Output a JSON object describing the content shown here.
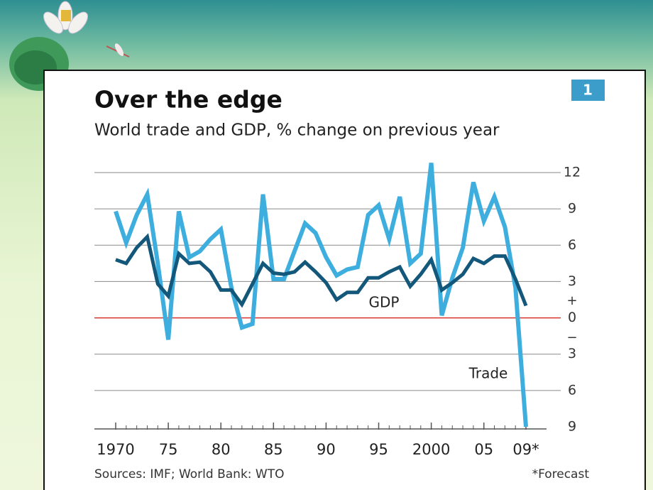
{
  "chart_data": {
    "type": "line",
    "badge": "1",
    "title": "Over the edge",
    "subtitle": "World trade and GDP, % change on previous year",
    "source": "Sources: IMF; World Bank: WTO",
    "footnote": "*Forecast",
    "axis_signs": [
      "+",
      "−"
    ],
    "x": [
      1970,
      1971,
      1972,
      1973,
      1974,
      1975,
      1976,
      1977,
      1978,
      1979,
      1980,
      1981,
      1982,
      1983,
      1984,
      1985,
      1986,
      1987,
      1988,
      1989,
      1990,
      1991,
      1992,
      1993,
      1994,
      1995,
      1996,
      1997,
      1998,
      1999,
      2000,
      2001,
      2002,
      2003,
      2004,
      2005,
      2006,
      2007,
      2008,
      2009
    ],
    "series": [
      {
        "name": "Trade",
        "color": "#3eaede",
        "values": [
          8.8,
          6.2,
          8.5,
          10.2,
          4.5,
          -1.8,
          8.8,
          5,
          5.5,
          6.5,
          7.3,
          2.5,
          -0.8,
          -0.5,
          10.2,
          3.2,
          3.2,
          5.5,
          7.8,
          7,
          5,
          3.5,
          4,
          4.2,
          8.5,
          9.3,
          6.5,
          10,
          4.5,
          5.3,
          12.8,
          0.2,
          3.3,
          5.8,
          11.2,
          8,
          10,
          7.5,
          2.5,
          -9
        ]
      },
      {
        "name": "GDP",
        "color": "#13587a",
        "values": [
          4.8,
          4.5,
          5.8,
          6.7,
          2.8,
          1.8,
          5.3,
          4.5,
          4.6,
          3.8,
          2.3,
          2.3,
          1.1,
          2.8,
          4.5,
          3.7,
          3.6,
          3.8,
          4.6,
          3.8,
          2.9,
          1.5,
          2.1,
          2.1,
          3.3,
          3.3,
          3.8,
          4.2,
          2.6,
          3.6,
          4.8,
          2.3,
          2.9,
          3.6,
          4.9,
          4.5,
          5.1,
          5.1,
          3.2,
          1.0
        ]
      }
    ],
    "xlim": [
      1970,
      2009
    ],
    "xticks": [
      1970,
      {
        "value": 1975,
        "label": "75"
      },
      {
        "value": 1980,
        "label": "80"
      },
      {
        "value": 1985,
        "label": "85"
      },
      {
        "value": 1990,
        "label": "90"
      },
      {
        "value": 1995,
        "label": "95"
      },
      2000,
      {
        "value": 2005,
        "label": "05"
      },
      {
        "value": 2009,
        "label": "09*"
      }
    ],
    "ylim": [
      -9,
      12
    ],
    "yticks": [
      {
        "value": -9,
        "label": "9"
      },
      {
        "value": -6,
        "label": "6"
      },
      {
        "value": -3,
        "label": "3"
      },
      0,
      3,
      6,
      9,
      12
    ],
    "zero_line_color": "#d9342b",
    "grid": true
  }
}
